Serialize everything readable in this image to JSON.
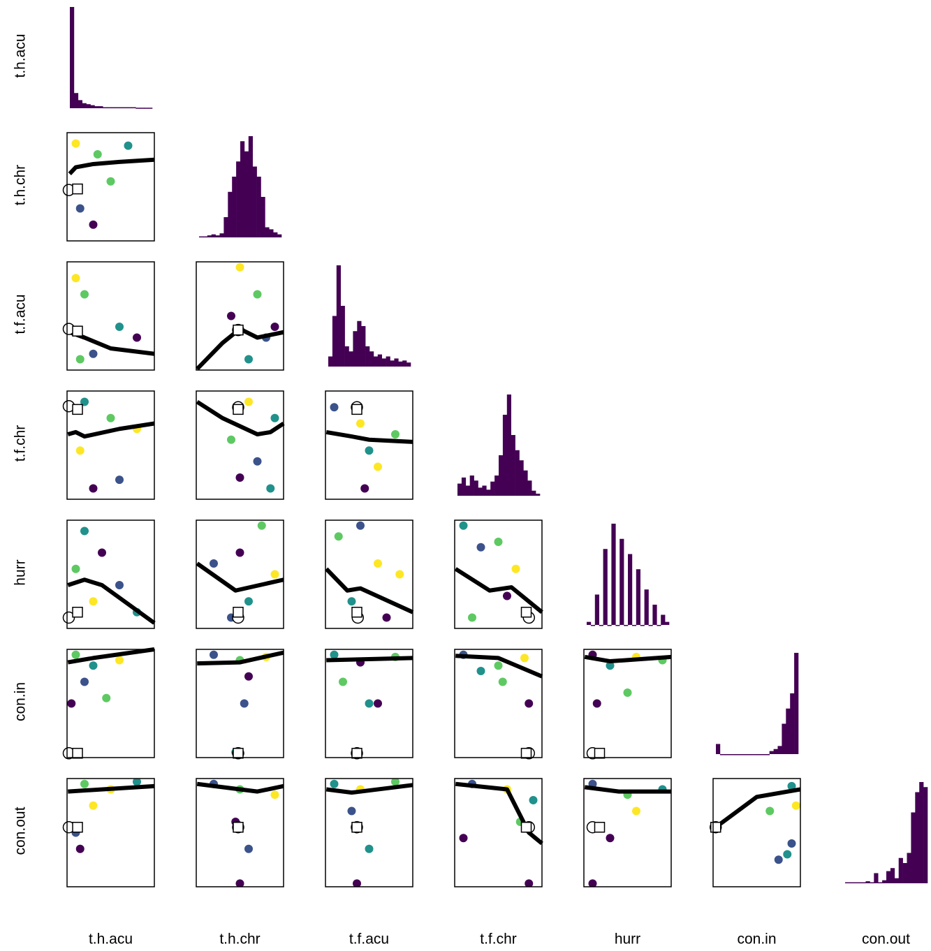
{
  "chart_data": {
    "type": "pairs",
    "variables": [
      "t.h.acu",
      "t.h.chr",
      "t.f.acu",
      "t.f.chr",
      "hurr",
      "con.in",
      "con.out"
    ],
    "palette": [
      "#440154",
      "#3b528b",
      "#21918c",
      "#5ec962",
      "#fde725"
    ],
    "hist_color": "#440154",
    "line_color": "#000000",
    "xlim": [
      0,
      1
    ],
    "ylim": [
      0,
      1
    ],
    "hist_ylim": [
      0,
      100
    ],
    "histograms": [
      [
        100,
        15,
        8,
        5,
        4,
        3,
        2,
        2,
        1,
        1,
        1,
        1,
        1,
        1,
        1,
        1,
        0.5,
        0.5,
        0.5,
        0.5
      ],
      [
        1,
        1,
        2,
        3,
        2,
        4,
        20,
        45,
        60,
        75,
        95,
        85,
        100,
        70,
        60,
        40,
        10,
        8,
        5,
        3
      ],
      [
        10,
        50,
        100,
        60,
        20,
        15,
        35,
        45,
        40,
        20,
        15,
        10,
        12,
        8,
        10,
        6,
        8,
        5,
        6,
        4
      ],
      [
        12,
        18,
        10,
        20,
        15,
        8,
        10,
        6,
        14,
        20,
        40,
        80,
        100,
        60,
        45,
        35,
        25,
        15,
        5,
        2
      ],
      [
        3,
        0,
        30,
        0,
        75,
        0,
        100,
        0,
        85,
        0,
        70,
        0,
        55,
        0,
        35,
        0,
        20,
        0,
        10,
        3
      ],
      [
        10,
        0,
        0,
        0,
        0,
        0,
        0,
        0,
        0,
        0,
        0,
        0,
        0,
        3,
        5,
        8,
        30,
        45,
        60,
        100
      ],
      [
        1,
        1,
        1,
        1,
        1,
        2,
        1,
        10,
        1,
        3,
        12,
        15,
        5,
        25,
        20,
        30,
        70,
        90,
        100,
        95
      ]
    ],
    "panels": [
      {
        "points": {
          "x": [
            0.1,
            0.35,
            0.7,
            0.15,
            0.3,
            0.5
          ],
          "y": [
            0.9,
            0.8,
            0.88,
            0.3,
            0.15,
            0.55
          ],
          "c": [
            4,
            3,
            2,
            1,
            0,
            3
          ]
        },
        "line": {
          "x": [
            0.03,
            0.1,
            0.3,
            0.6,
            1
          ],
          "y": [
            0.62,
            0.68,
            0.71,
            0.73,
            0.75
          ]
        },
        "circle": {
          "x": 0.02,
          "y": 0.47
        },
        "square": {
          "x": 0.12,
          "y": 0.48
        }
      },
      {
        "points": {
          "x": [
            0.1,
            0.2,
            0.6,
            0.8,
            0.3,
            0.15
          ],
          "y": [
            0.85,
            0.7,
            0.4,
            0.3,
            0.15,
            0.1
          ],
          "c": [
            4,
            3,
            2,
            0,
            1,
            3
          ]
        },
        "line": {
          "x": [
            0.03,
            0.2,
            0.5,
            1
          ],
          "y": [
            0.35,
            0.3,
            0.2,
            0.15
          ]
        },
        "circle": {
          "x": 0.02,
          "y": 0.38
        },
        "square": {
          "x": 0.12,
          "y": 0.36
        }
      },
      {
        "points": {
          "x": [
            0.5,
            0.7,
            0.4,
            0.8,
            0.6,
            0.9
          ],
          "y": [
            0.95,
            0.7,
            0.5,
            0.3,
            0.1,
            0.4
          ],
          "c": [
            4,
            3,
            0,
            1,
            2,
            0
          ]
        },
        "line": {
          "x": [
            0.01,
            0.3,
            0.5,
            0.7,
            1
          ],
          "y": [
            0.01,
            0.25,
            0.38,
            0.3,
            0.35
          ]
        },
        "circle": {
          "x": 0.48,
          "y": 0.37
        },
        "square": {
          "x": 0.48,
          "y": 0.37
        }
      },
      {
        "points": {
          "x": [
            0.2,
            0.5,
            0.8,
            0.15,
            0.6,
            0.3
          ],
          "y": [
            0.9,
            0.75,
            0.65,
            0.45,
            0.18,
            0.1
          ],
          "c": [
            2,
            3,
            4,
            4,
            1,
            0
          ]
        },
        "line": {
          "x": [
            0.01,
            0.1,
            0.2,
            0.6,
            1
          ],
          "y": [
            0.6,
            0.62,
            0.58,
            0.65,
            0.7
          ]
        },
        "circle": {
          "x": 0.02,
          "y": 0.86
        },
        "square": {
          "x": 0.12,
          "y": 0.83
        }
      },
      {
        "points": {
          "x": [
            0.6,
            0.9,
            0.4,
            0.7,
            0.5,
            0.85
          ],
          "y": [
            0.9,
            0.75,
            0.55,
            0.35,
            0.2,
            0.1
          ],
          "c": [
            4,
            2,
            3,
            1,
            0,
            2
          ]
        },
        "line": {
          "x": [
            0.01,
            0.3,
            0.7,
            0.85,
            1
          ],
          "y": [
            0.9,
            0.75,
            0.6,
            0.62,
            0.7
          ]
        },
        "circle": {
          "x": 0.48,
          "y": 0.85
        },
        "square": {
          "x": 0.48,
          "y": 0.83
        }
      },
      {
        "points": {
          "x": [
            0.1,
            0.4,
            0.8,
            0.5,
            0.6,
            0.45
          ],
          "y": [
            0.85,
            0.7,
            0.6,
            0.45,
            0.3,
            0.1
          ],
          "c": [
            1,
            4,
            3,
            2,
            4,
            0
          ]
        },
        "line": {
          "x": [
            0.01,
            0.3,
            0.5,
            1
          ],
          "y": [
            0.62,
            0.58,
            0.55,
            0.53
          ]
        },
        "circle": {
          "x": 0.36,
          "y": 0.85
        },
        "square": {
          "x": 0.36,
          "y": 0.83
        }
      },
      {
        "points": {
          "x": [
            0.2,
            0.4,
            0.1,
            0.6,
            0.8,
            0.3
          ],
          "y": [
            0.9,
            0.7,
            0.55,
            0.4,
            0.15,
            0.25
          ],
          "c": [
            2,
            0,
            3,
            1,
            2,
            4
          ]
        },
        "line": {
          "x": [
            0.01,
            0.2,
            0.4,
            1
          ],
          "y": [
            0.4,
            0.45,
            0.4,
            0.05
          ]
        },
        "circle": {
          "x": 0.02,
          "y": 0.1
        },
        "square": {
          "x": 0.12,
          "y": 0.15
        }
      },
      {
        "points": {
          "x": [
            0.2,
            0.5,
            0.75,
            0.9,
            0.6,
            0.4
          ],
          "y": [
            0.6,
            0.7,
            0.95,
            0.5,
            0.25,
            0.1
          ],
          "c": [
            1,
            0,
            3,
            4,
            2,
            1
          ]
        },
        "line": {
          "x": [
            0.01,
            0.45,
            1
          ],
          "y": [
            0.6,
            0.35,
            0.45
          ]
        },
        "circle": {
          "x": 0.48,
          "y": 0.1
        },
        "square": {
          "x": 0.48,
          "y": 0.15
        }
      },
      {
        "points": {
          "x": [
            0.15,
            0.4,
            0.6,
            0.85,
            0.3,
            0.7
          ],
          "y": [
            0.85,
            0.95,
            0.6,
            0.5,
            0.25,
            0.1
          ],
          "c": [
            3,
            1,
            4,
            4,
            2,
            0
          ]
        },
        "line": {
          "x": [
            0.01,
            0.25,
            0.4,
            1
          ],
          "y": [
            0.55,
            0.35,
            0.37,
            0.15
          ]
        },
        "circle": {
          "x": 0.37,
          "y": 0.1
        },
        "square": {
          "x": 0.36,
          "y": 0.15
        }
      },
      {
        "points": {
          "x": [
            0.1,
            0.3,
            0.5,
            0.7,
            0.6,
            0.2
          ],
          "y": [
            0.95,
            0.75,
            0.8,
            0.55,
            0.3,
            0.1
          ],
          "c": [
            2,
            1,
            3,
            4,
            0,
            3
          ]
        },
        "line": {
          "x": [
            0.01,
            0.4,
            0.65,
            1
          ],
          "y": [
            0.55,
            0.35,
            0.38,
            0.15
          ]
        },
        "circle": {
          "x": 0.85,
          "y": 0.1
        },
        "square": {
          "x": 0.82,
          "y": 0.15
        }
      },
      {
        "points": {
          "x": [
            0.1,
            0.3,
            0.6,
            0.2,
            0.45,
            0.05
          ],
          "y": [
            0.95,
            0.85,
            0.9,
            0.7,
            0.55,
            0.5
          ],
          "c": [
            3,
            2,
            4,
            1,
            3,
            0
          ]
        },
        "line": {
          "x": [
            0.01,
            0.3,
            1
          ],
          "y": [
            0.88,
            0.92,
            1
          ]
        },
        "circle": {
          "x": 0.02,
          "y": 0.04
        },
        "square": {
          "x": 0.12,
          "y": 0.04
        }
      },
      {
        "points": {
          "x": [
            0.2,
            0.5,
            0.8,
            0.6,
            0.55,
            0.45
          ],
          "y": [
            0.95,
            0.9,
            0.93,
            0.75,
            0.5,
            0.05
          ],
          "c": [
            1,
            3,
            4,
            0,
            1,
            2
          ]
        },
        "line": {
          "x": [
            0.01,
            0.5,
            1
          ],
          "y": [
            0.87,
            0.88,
            0.97
          ]
        },
        "circle": {
          "x": 0.48,
          "y": 0.04
        },
        "square": {
          "x": 0.48,
          "y": 0.04
        }
      },
      {
        "points": {
          "x": [
            0.1,
            0.4,
            0.8,
            0.2,
            0.5,
            0.6
          ],
          "y": [
            0.95,
            0.88,
            0.93,
            0.7,
            0.5,
            0.5
          ],
          "c": [
            2,
            0,
            3,
            3,
            2,
            0
          ]
        },
        "line": {
          "x": [
            0.01,
            0.5,
            1
          ],
          "y": [
            0.9,
            0.91,
            0.92
          ]
        },
        "circle": {
          "x": 0.36,
          "y": 0.04
        },
        "square": {
          "x": 0.36,
          "y": 0.04
        }
      },
      {
        "points": {
          "x": [
            0.1,
            0.5,
            0.8,
            0.55,
            0.85,
            0.3
          ],
          "y": [
            0.95,
            0.85,
            0.92,
            0.7,
            0.5,
            0.8
          ],
          "c": [
            1,
            3,
            4,
            3,
            0,
            2
          ]
        },
        "line": {
          "x": [
            0.01,
            0.5,
            1
          ],
          "y": [
            0.94,
            0.92,
            0.75
          ]
        },
        "circle": {
          "x": 0.85,
          "y": 0.04
        },
        "square": {
          "x": 0.82,
          "y": 0.04
        }
      },
      {
        "points": {
          "x": [
            0.1,
            0.3,
            0.6,
            0.9,
            0.5,
            0.15
          ],
          "y": [
            0.95,
            0.85,
            0.93,
            0.9,
            0.6,
            0.5
          ],
          "c": [
            0,
            2,
            4,
            3,
            3,
            0
          ]
        },
        "line": {
          "x": [
            0.01,
            0.3,
            1
          ],
          "y": [
            0.93,
            0.89,
            0.93
          ]
        },
        "circle": {
          "x": 0.1,
          "y": 0.04
        },
        "square": {
          "x": 0.18,
          "y": 0.04
        }
      },
      {
        "points": {
          "x": [
            0.2,
            0.5,
            0.8,
            0.3,
            0.1,
            0.15
          ],
          "y": [
            0.95,
            0.9,
            0.97,
            0.75,
            0.5,
            0.35
          ],
          "c": [
            3,
            4,
            2,
            4,
            1,
            0
          ]
        },
        "line": {
          "x": [
            0.01,
            1
          ],
          "y": [
            0.88,
            0.93
          ]
        },
        "circle": {
          "x": 0.02,
          "y": 0.55
        },
        "square": {
          "x": 0.12,
          "y": 0.55
        }
      },
      {
        "points": {
          "x": [
            0.2,
            0.5,
            0.9,
            0.45,
            0.6,
            0.5
          ],
          "y": [
            0.95,
            0.9,
            0.85,
            0.6,
            0.35,
            0.03
          ],
          "c": [
            1,
            3,
            4,
            0,
            1,
            0
          ]
        },
        "line": {
          "x": [
            0.01,
            0.7,
            1
          ],
          "y": [
            0.95,
            0.88,
            0.93
          ]
        },
        "circle": {
          "x": 0.48,
          "y": 0.55
        },
        "square": {
          "x": 0.48,
          "y": 0.55
        }
      },
      {
        "points": {
          "x": [
            0.1,
            0.4,
            0.8,
            0.3,
            0.5,
            0.36
          ],
          "y": [
            0.95,
            0.9,
            0.97,
            0.7,
            0.35,
            0.03
          ],
          "c": [
            2,
            4,
            3,
            1,
            2,
            0
          ]
        },
        "line": {
          "x": [
            0.01,
            0.3,
            1
          ],
          "y": [
            0.9,
            0.87,
            0.94
          ]
        },
        "circle": {
          "x": 0.36,
          "y": 0.55
        },
        "square": {
          "x": 0.36,
          "y": 0.55
        }
      },
      {
        "points": {
          "x": [
            0.2,
            0.6,
            0.9,
            0.75,
            0.1,
            0.85
          ],
          "y": [
            0.95,
            0.9,
            0.8,
            0.6,
            0.45,
            0.03
          ],
          "c": [
            1,
            4,
            2,
            3,
            0,
            0
          ]
        },
        "line": {
          "x": [
            0.01,
            0.6,
            0.85,
            1
          ],
          "y": [
            0.95,
            0.9,
            0.5,
            0.4
          ]
        },
        "circle": {
          "x": 0.85,
          "y": 0.55
        },
        "square": {
          "x": 0.82,
          "y": 0.55
        }
      },
      {
        "points": {
          "x": [
            0.1,
            0.5,
            0.9,
            0.6,
            0.3,
            0.1
          ],
          "y": [
            0.95,
            0.85,
            0.9,
            0.7,
            0.45,
            0.03
          ],
          "c": [
            1,
            3,
            2,
            4,
            0,
            0
          ]
        },
        "line": {
          "x": [
            0.01,
            0.4,
            1
          ],
          "y": [
            0.92,
            0.88,
            0.88
          ]
        },
        "circle": {
          "x": 0.1,
          "y": 0.55
        },
        "square": {
          "x": 0.18,
          "y": 0.55
        }
      },
      {
        "points": {
          "x": [
            0.9,
            0.95,
            0.65,
            0.9,
            0.75,
            0.85
          ],
          "y": [
            0.93,
            0.75,
            0.7,
            0.4,
            0.25,
            0.3
          ],
          "c": [
            2,
            4,
            3,
            1,
            1,
            2
          ]
        },
        "line": {
          "x": [
            0.03,
            0.5,
            1
          ],
          "y": [
            0.55,
            0.83,
            0.9
          ]
        },
        "circle": {
          "x": 0.03,
          "y": 0.55
        },
        "square": {
          "x": 0.03,
          "y": 0.55
        }
      }
    ]
  }
}
